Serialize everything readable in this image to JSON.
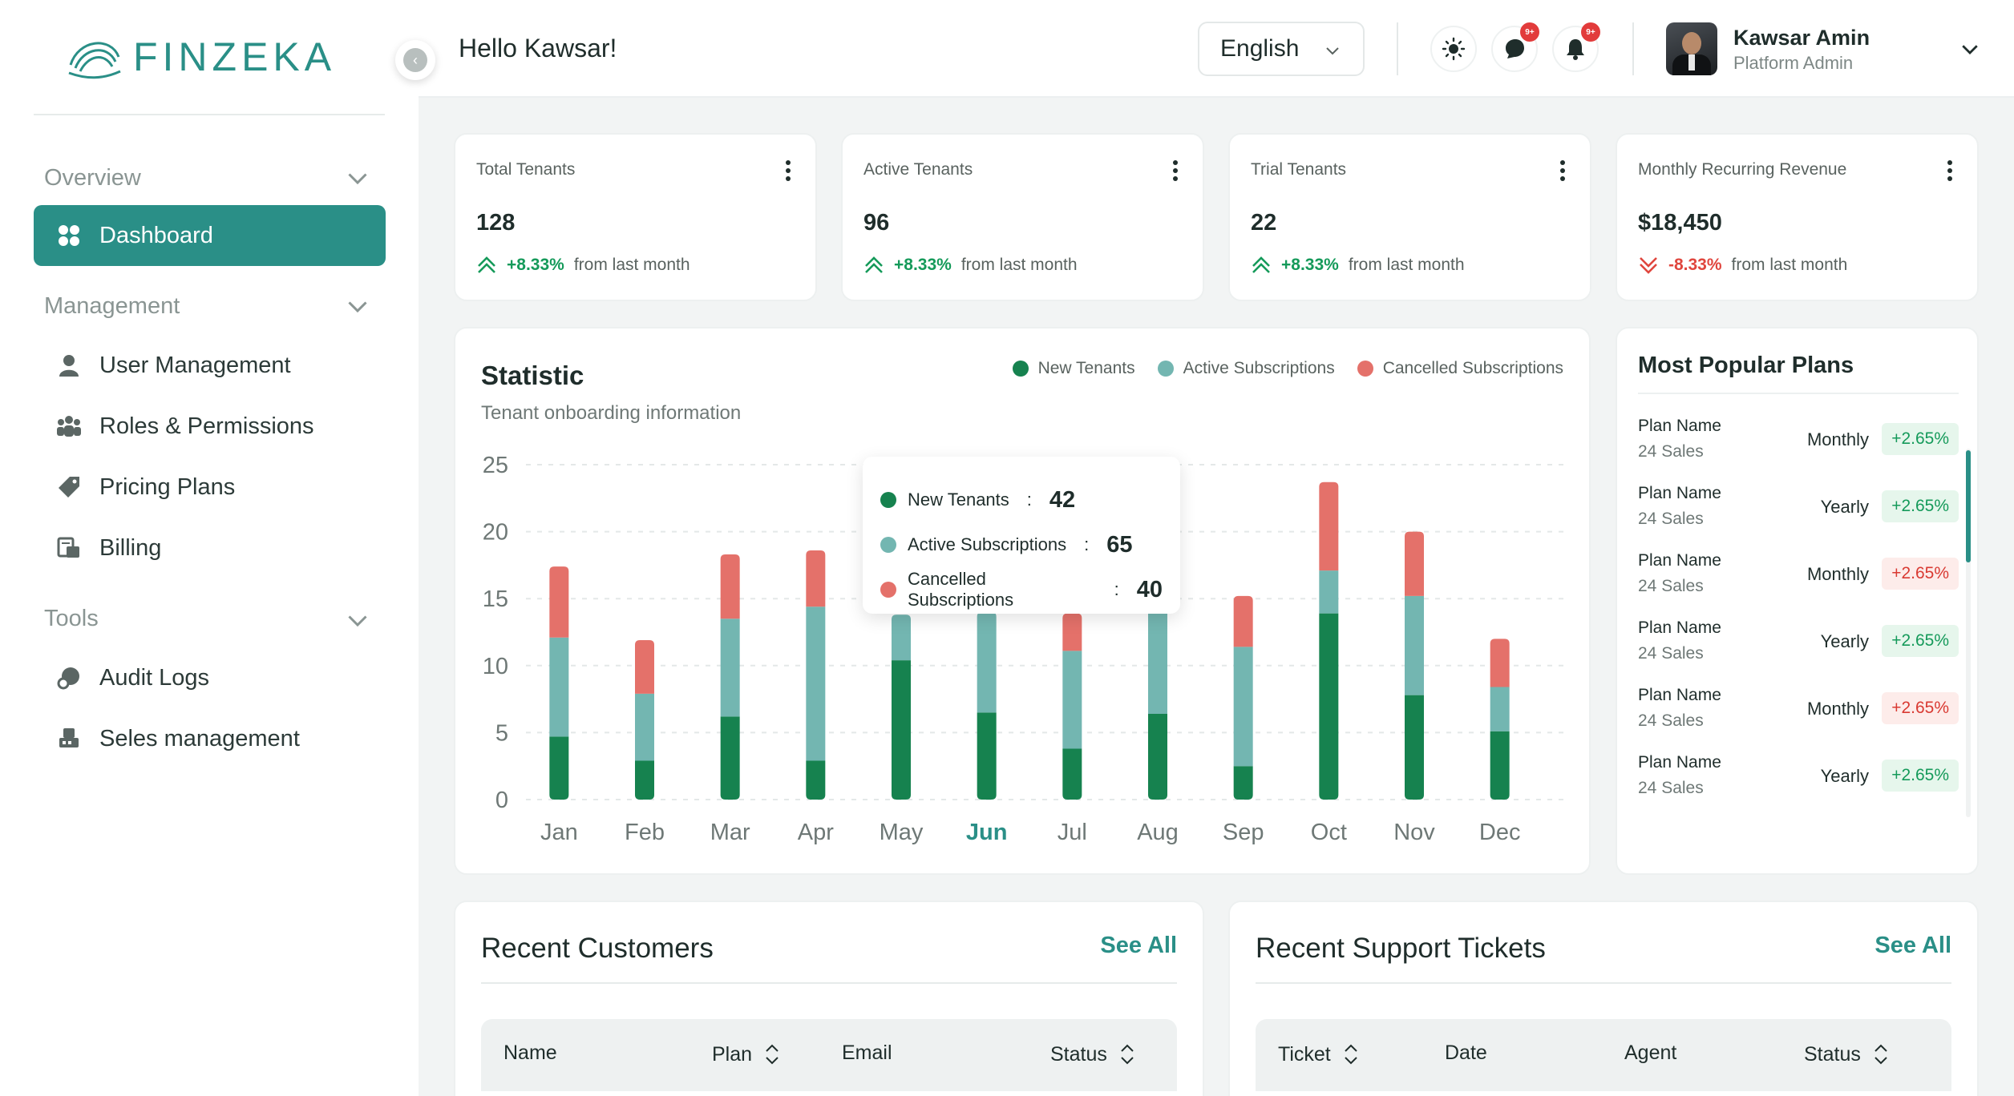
{
  "brand": {
    "name": "FINZEKA",
    "color": "#2a8f87"
  },
  "sidebar": {
    "sections": [
      {
        "label": "Overview"
      },
      {
        "label": "Management"
      },
      {
        "label": "Tools"
      }
    ],
    "items": [
      {
        "label": "Dashboard",
        "icon": "grid-icon",
        "active": true
      },
      {
        "label": "User Management",
        "icon": "user-icon"
      },
      {
        "label": "Roles & Permissions",
        "icon": "team-icon"
      },
      {
        "label": "Pricing Plans",
        "icon": "tag-icon"
      },
      {
        "label": "Billing",
        "icon": "billing-icon"
      },
      {
        "label": "Audit Logs",
        "icon": "audit-icon"
      },
      {
        "label": "Seles management",
        "icon": "sales-icon"
      }
    ]
  },
  "header": {
    "greeting": "Hello Kawsar!",
    "language": "English",
    "chat_badge": "9+",
    "notif_badge": "9+",
    "user_name": "Kawsar Amin",
    "user_role": "Platform Admin"
  },
  "kpis": [
    {
      "label": "Total Tenants",
      "value": "128",
      "change": "+8.33%",
      "direction": "up",
      "suffix": "from last month"
    },
    {
      "label": "Active Tenants",
      "value": "96",
      "change": "+8.33%",
      "direction": "up",
      "suffix": "from last month"
    },
    {
      "label": "Trial Tenants",
      "value": "22",
      "change": "+8.33%",
      "direction": "up",
      "suffix": "from last month"
    },
    {
      "label": "Monthly Recurring Revenue",
      "value": "$18,450",
      "change": "-8.33%",
      "direction": "down",
      "suffix": "from last month"
    }
  ],
  "statistic": {
    "title": "Statistic",
    "subtitle": "Tenant onboarding information",
    "tooltip": {
      "rows": [
        {
          "label": "New Tenants",
          "value": "42"
        },
        {
          "label": "Active Subscriptions",
          "value": "65"
        },
        {
          "label": "Cancelled Subscriptions",
          "value": "40"
        }
      ]
    }
  },
  "chart_data": {
    "type": "bar",
    "stacked": true,
    "categories": [
      "Jan",
      "Feb",
      "Mar",
      "Apr",
      "May",
      "Jun",
      "Jul",
      "Aug",
      "Sep",
      "Oct",
      "Nov",
      "Dec"
    ],
    "highlighted_category": "Jun",
    "series": [
      {
        "name": "New Tenants",
        "color": "#16824f",
        "values": [
          4.7,
          2.9,
          6.2,
          2.9,
          10.4,
          6.5,
          3.8,
          6.4,
          2.5,
          13.9,
          7.8,
          5.1
        ]
      },
      {
        "name": "Active Subscriptions",
        "color": "#73b6b1",
        "values": [
          7.4,
          5.0,
          7.3,
          11.5,
          3.4,
          7.5,
          7.3,
          9.6,
          8.9,
          3.2,
          7.4,
          3.3
        ]
      },
      {
        "name": "Cancelled Subscriptions",
        "color": "#e4716a",
        "values": [
          5.3,
          4.0,
          4.8,
          4.2,
          0.0,
          0.0,
          2.8,
          5.0,
          3.8,
          6.6,
          4.8,
          3.6
        ]
      }
    ],
    "yticks": [
      "0",
      "5",
      "10",
      "15",
      "20",
      "25"
    ],
    "ylim": [
      0,
      25
    ],
    "grid": true,
    "legend": "top-right"
  },
  "popular_plans": {
    "title": "Most Popular Plans",
    "rows": [
      {
        "name": "Plan Name",
        "sales": "24 Sales",
        "period": "Monthly",
        "change": "+2.65%",
        "direction": "up"
      },
      {
        "name": "Plan Name",
        "sales": "24 Sales",
        "period": "Yearly",
        "change": "+2.65%",
        "direction": "up"
      },
      {
        "name": "Plan Name",
        "sales": "24 Sales",
        "period": "Monthly",
        "change": "+2.65%",
        "direction": "down"
      },
      {
        "name": "Plan Name",
        "sales": "24 Sales",
        "period": "Yearly",
        "change": "+2.65%",
        "direction": "up"
      },
      {
        "name": "Plan Name",
        "sales": "24 Sales",
        "period": "Monthly",
        "change": "+2.65%",
        "direction": "down"
      },
      {
        "name": "Plan Name",
        "sales": "24 Sales",
        "period": "Yearly",
        "change": "+2.65%",
        "direction": "up"
      }
    ]
  },
  "recent_customers": {
    "title": "Recent Customers",
    "see_all": "See All",
    "columns": [
      "Name",
      "Plan",
      "Email",
      "Status"
    ]
  },
  "recent_tickets": {
    "title": "Recent Support Tickets",
    "see_all": "See All",
    "columns": [
      "Ticket",
      "Date",
      "Agent",
      "Status"
    ]
  }
}
